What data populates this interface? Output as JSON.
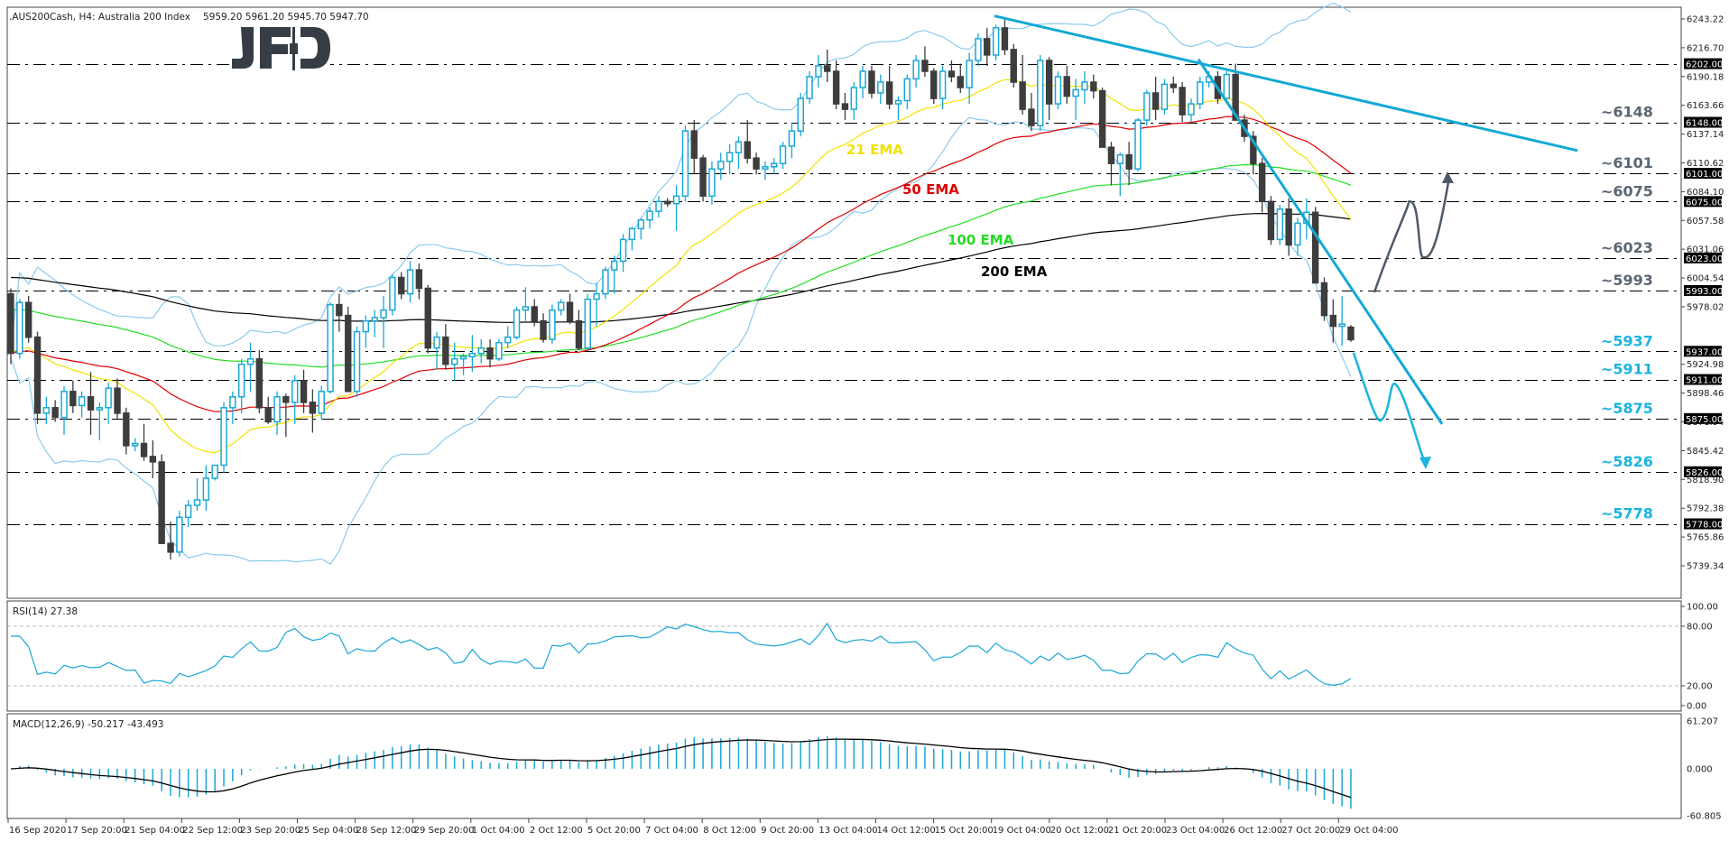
{
  "header": {
    "symbol": ".AUS200Cash, H4:  Australia 200 Index",
    "ohlc": "5959.20 5961.20 5945.70 5947.70"
  },
  "logo": {
    "text": "JFD"
  },
  "colors": {
    "bull": "#1aa7d6",
    "bear": "#3d3d3d",
    "bollinger": "#8ccbeb",
    "ema21": "#f2e200",
    "ema50": "#e00000",
    "ema100": "#22dd22",
    "ema200": "#000000",
    "trendline": "#13a9d4",
    "level_support": "#1ab4e0",
    "level_resist": "#5a6673",
    "arrow_up": "#4e5966",
    "arrow_down": "#1ab4e0",
    "rsi": "#1aa7d6",
    "macd_hist": "#1aa7d6",
    "macd_signal": "#000000"
  },
  "chart_data": [
    {
      "type": "candlestick",
      "title": ".AUS200Cash, H4: Australia 200 Index",
      "ohlc_last": {
        "open": 5959.2,
        "high": 5961.2,
        "low": 5945.7,
        "close": 5947.7
      },
      "ylim": [
        5715,
        6255
      ],
      "y_ticks": [
        6243.22,
        6216.7,
        6190.18,
        6163.66,
        6137.14,
        6110.62,
        6084.1,
        6057.58,
        6031.06,
        6004.54,
        5978.02,
        5924.98,
        5898.46,
        5871.94,
        5845.42,
        5818.9,
        5792.38,
        5765.86,
        5739.34
      ],
      "x_ticks": [
        "16 Sep 2020",
        "17 Sep 20:00",
        "21 Sep 04:00",
        "22 Sep 12:00",
        "23 Sep 20:00",
        "25 Sep 04:00",
        "28 Sep 12:00",
        "29 Sep 20:00",
        "1 Oct 04:00",
        "2 Oct 12:00",
        "5 Oct 20:00",
        "7 Oct 04:00",
        "8 Oct 12:00",
        "9 Oct 20:00",
        "13 Oct 04:00",
        "14 Oct 12:00",
        "15 Oct 20:00",
        "19 Oct 04:00",
        "20 Oct 12:00",
        "21 Oct 20:00",
        "23 Oct 04:00",
        "26 Oct 12:00",
        "27 Oct 20:00",
        "29 Oct 04:00"
      ],
      "levels": [
        {
          "value": 6202.0,
          "label": "",
          "tag": "6202.00",
          "style": "resist"
        },
        {
          "value": 6148.0,
          "label": "~6148",
          "tag": "6148.00",
          "style": "resist"
        },
        {
          "value": 6101.0,
          "label": "~6101",
          "tag": "6101.00",
          "style": "resist"
        },
        {
          "value": 6075.0,
          "label": "~6075",
          "tag": "6075.00",
          "style": "resist"
        },
        {
          "value": 6023.0,
          "label": "~6023",
          "tag": "6023.00",
          "style": "resist"
        },
        {
          "value": 5993.0,
          "label": "~5993",
          "tag": "5993.00",
          "style": "resist"
        },
        {
          "value": 5937.0,
          "label": "~5937",
          "tag": "5937.00",
          "style": "support"
        },
        {
          "value": 5911.0,
          "label": "~5911",
          "tag": "5911.00",
          "style": "support"
        },
        {
          "value": 5875.0,
          "label": "~5875",
          "tag": "5875.00",
          "style": "support"
        },
        {
          "value": 5826.0,
          "label": "~5826",
          "tag": "5826.00",
          "style": "support"
        },
        {
          "value": 5778.0,
          "label": "~5778",
          "tag": "5778.00",
          "style": "support"
        }
      ],
      "indicators": [
        {
          "name": "21 EMA",
          "label_pos": [
            938,
            171
          ]
        },
        {
          "name": "50 EMA",
          "label_pos": [
            1000,
            215
          ]
        },
        {
          "name": "100 EMA",
          "label_pos": [
            1050,
            271
          ]
        },
        {
          "name": "200 EMA",
          "label_pos": [
            1087,
            306
          ]
        }
      ],
      "candles_approx": [
        [
          5990,
          5995,
          5925,
          5935
        ],
        [
          5935,
          5985,
          5930,
          5982
        ],
        [
          5982,
          5988,
          5945,
          5950
        ],
        [
          5950,
          5955,
          5870,
          5880
        ],
        [
          5880,
          5895,
          5870,
          5885
        ],
        [
          5885,
          5892,
          5872,
          5876
        ],
        [
          5876,
          5905,
          5860,
          5900
        ],
        [
          5900,
          5910,
          5880,
          5887
        ],
        [
          5887,
          5900,
          5876,
          5895
        ],
        [
          5895,
          5918,
          5860,
          5883
        ],
        [
          5883,
          5890,
          5855,
          5885
        ],
        [
          5885,
          5908,
          5870,
          5903
        ],
        [
          5903,
          5912,
          5875,
          5880
        ],
        [
          5880,
          5885,
          5842,
          5850
        ],
        [
          5850,
          5857,
          5845,
          5852
        ],
        [
          5852,
          5870,
          5836,
          5840
        ],
        [
          5840,
          5855,
          5820,
          5835
        ],
        [
          5835,
          5842,
          5760,
          5760
        ],
        [
          5760,
          5780,
          5745,
          5752
        ],
        [
          5752,
          5790,
          5748,
          5784
        ],
        [
          5784,
          5800,
          5775,
          5795
        ],
        [
          5795,
          5820,
          5790,
          5800
        ],
        [
          5800,
          5832,
          5790,
          5820
        ],
        [
          5820,
          5832,
          5818,
          5832
        ],
        [
          5832,
          5890,
          5825,
          5885
        ],
        [
          5885,
          5900,
          5870,
          5895
        ],
        [
          5895,
          5930,
          5880,
          5925
        ],
        [
          5925,
          5945,
          5900,
          5930
        ],
        [
          5930,
          5938,
          5880,
          5885
        ],
        [
          5885,
          5895,
          5870,
          5872
        ],
        [
          5872,
          5900,
          5860,
          5895
        ],
        [
          5895,
          5898,
          5858,
          5890
        ],
        [
          5890,
          5915,
          5870,
          5910
        ],
        [
          5910,
          5920,
          5880,
          5890
        ],
        [
          5890,
          5902,
          5862,
          5880
        ],
        [
          5880,
          5905,
          5874,
          5900
        ],
        [
          5900,
          5982,
          5898,
          5980
        ],
        [
          5980,
          5990,
          5955,
          5970
        ],
        [
          5970,
          5978,
          5900,
          5900
        ],
        [
          5900,
          5960,
          5895,
          5955
        ],
        [
          5955,
          5970,
          5940,
          5965
        ],
        [
          5965,
          5975,
          5950,
          5968
        ],
        [
          5968,
          5988,
          5940,
          5975
        ],
        [
          5975,
          6008,
          5970,
          6005
        ],
        [
          6005,
          6010,
          5985,
          5990
        ],
        [
          5990,
          6020,
          5982,
          6012
        ],
        [
          6012,
          6018,
          5985,
          5995
        ],
        [
          5995,
          5998,
          5935,
          5940
        ],
        [
          5940,
          5955,
          5920,
          5950
        ],
        [
          5950,
          5962,
          5920,
          5925
        ],
        [
          5925,
          5945,
          5910,
          5930
        ],
        [
          5930,
          5935,
          5915,
          5932
        ],
        [
          5932,
          5952,
          5918,
          5935
        ],
        [
          5935,
          5948,
          5926,
          5940
        ],
        [
          5940,
          5948,
          5922,
          5930
        ],
        [
          5930,
          5948,
          5928,
          5945
        ],
        [
          5945,
          5960,
          5940,
          5950
        ],
        [
          5950,
          5978,
          5948,
          5975
        ],
        [
          5975,
          5996,
          5965,
          5978
        ],
        [
          5978,
          5985,
          5960,
          5965
        ],
        [
          5965,
          5972,
          5945,
          5948
        ],
        [
          5948,
          5980,
          5944,
          5975
        ],
        [
          5975,
          5985,
          5970,
          5982
        ],
        [
          5982,
          5990,
          5962,
          5965
        ],
        [
          5965,
          5975,
          5938,
          5940
        ],
        [
          5940,
          5990,
          5938,
          5985
        ],
        [
          5985,
          6000,
          5960,
          5990
        ],
        [
          5990,
          6015,
          5985,
          6012
        ],
        [
          6012,
          6025,
          5990,
          6020
        ],
        [
          6020,
          6045,
          6010,
          6040
        ],
        [
          6040,
          6052,
          6030,
          6050
        ],
        [
          6050,
          6060,
          6040,
          6058
        ],
        [
          6058,
          6070,
          6050,
          6066
        ],
        [
          6066,
          6080,
          6060,
          6075
        ],
        [
          6075,
          6078,
          6070,
          6073
        ],
        [
          6073,
          6090,
          6048,
          6080
        ],
        [
          6080,
          6145,
          6075,
          6140
        ],
        [
          6140,
          6150,
          6100,
          6115
        ],
        [
          6115,
          6118,
          6075,
          6080
        ],
        [
          6080,
          6112,
          6072,
          6105
        ],
        [
          6105,
          6120,
          6095,
          6112
        ],
        [
          6112,
          6128,
          6100,
          6120
        ],
        [
          6120,
          6135,
          6105,
          6130
        ],
        [
          6130,
          6150,
          6110,
          6115
        ],
        [
          6115,
          6120,
          6100,
          6105
        ],
        [
          6105,
          6112,
          6095,
          6107
        ],
        [
          6107,
          6115,
          6100,
          6110
        ],
        [
          6110,
          6130,
          6105,
          6126
        ],
        [
          6126,
          6148,
          6115,
          6140
        ],
        [
          6140,
          6175,
          6135,
          6170
        ],
        [
          6170,
          6195,
          6165,
          6190
        ],
        [
          6190,
          6210,
          6180,
          6200
        ],
        [
          6200,
          6215,
          6185,
          6195
        ],
        [
          6195,
          6205,
          6160,
          6165
        ],
        [
          6165,
          6175,
          6150,
          6160
        ],
        [
          6160,
          6185,
          6150,
          6180
        ],
        [
          6180,
          6200,
          6170,
          6195
        ],
        [
          6195,
          6200,
          6170,
          6175
        ],
        [
          6175,
          6192,
          6165,
          6185
        ],
        [
          6185,
          6200,
          6160,
          6165
        ],
        [
          6165,
          6172,
          6150,
          6168
        ],
        [
          6168,
          6192,
          6160,
          6188
        ],
        [
          6188,
          6210,
          6180,
          6205
        ],
        [
          6205,
          6218,
          6190,
          6195
        ],
        [
          6195,
          6198,
          6165,
          6170
        ],
        [
          6170,
          6200,
          6160,
          6195
        ],
        [
          6195,
          6205,
          6185,
          6190
        ],
        [
          6190,
          6202,
          6175,
          6180
        ],
        [
          6180,
          6212,
          6165,
          6205
        ],
        [
          6205,
          6230,
          6200,
          6225
        ],
        [
          6225,
          6235,
          6200,
          6210
        ],
        [
          6210,
          6238,
          6205,
          6235
        ],
        [
          6235,
          6245,
          6210,
          6215
        ],
        [
          6215,
          6220,
          6180,
          6185
        ],
        [
          6185,
          6210,
          6155,
          6160
        ],
        [
          6160,
          6175,
          6140,
          6145
        ],
        [
          6145,
          6210,
          6140,
          6205
        ],
        [
          6205,
          6208,
          6150,
          6165
        ],
        [
          6165,
          6195,
          6160,
          6190
        ],
        [
          6190,
          6200,
          6165,
          6172
        ],
        [
          6172,
          6188,
          6150,
          6178
        ],
        [
          6178,
          6195,
          6165,
          6185
        ],
        [
          6185,
          6192,
          6170,
          6177
        ],
        [
          6177,
          6180,
          6125,
          6125
        ],
        [
          6125,
          6130,
          6090,
          6110
        ],
        [
          6110,
          6120,
          6080,
          6118
        ],
        [
          6118,
          6130,
          6090,
          6105
        ],
        [
          6105,
          6152,
          6103,
          6150
        ],
        [
          6150,
          6178,
          6145,
          6175
        ],
        [
          6175,
          6190,
          6150,
          6160
        ],
        [
          6160,
          6188,
          6155,
          6183
        ],
        [
          6183,
          6190,
          6175,
          6180
        ],
        [
          6180,
          6185,
          6148,
          6155
        ],
        [
          6155,
          6170,
          6148,
          6165
        ],
        [
          6165,
          6190,
          6160,
          6185
        ],
        [
          6185,
          6195,
          6180,
          6190
        ],
        [
          6190,
          6195,
          6165,
          6170
        ],
        [
          6170,
          6195,
          6168,
          6192
        ],
        [
          6192,
          6202,
          6150,
          6150
        ],
        [
          6150,
          6155,
          6130,
          6135
        ],
        [
          6135,
          6140,
          6100,
          6110
        ],
        [
          6110,
          6115,
          6065,
          6075
        ],
        [
          6075,
          6080,
          6035,
          6040
        ],
        [
          6040,
          6072,
          6035,
          6068
        ],
        [
          6068,
          6078,
          6025,
          6035
        ],
        [
          6035,
          6060,
          6025,
          6055
        ],
        [
          6055,
          6078,
          6040,
          6065
        ],
        [
          6065,
          6070,
          6000,
          6000
        ],
        [
          6000,
          6005,
          5965,
          5970
        ],
        [
          5970,
          5985,
          5945,
          5960
        ],
        [
          5960,
          5988,
          5942,
          5962
        ],
        [
          5959.2,
          5961.2,
          5945.7,
          5947.7
        ]
      ]
    },
    {
      "type": "line",
      "title": "RSI(14) 27.38",
      "ylim": [
        0,
        100
      ],
      "y_ticks": [
        100.0,
        80.0,
        20.0,
        0.0
      ],
      "reference_lines": [
        80,
        20
      ],
      "last_value": 27.38
    },
    {
      "type": "bar",
      "title": "MACD(12,26,9) -50.217 -43.493",
      "ylim": [
        -60.805,
        61.207
      ],
      "y_ticks": [
        61.207,
        0.0,
        -60.805
      ],
      "macd_last": -50.217,
      "signal_last": -43.493
    }
  ],
  "rsi": {
    "title": "RSI(14) 27.38"
  },
  "macd": {
    "title": "MACD(12,26,9) -50.217 -43.493"
  }
}
